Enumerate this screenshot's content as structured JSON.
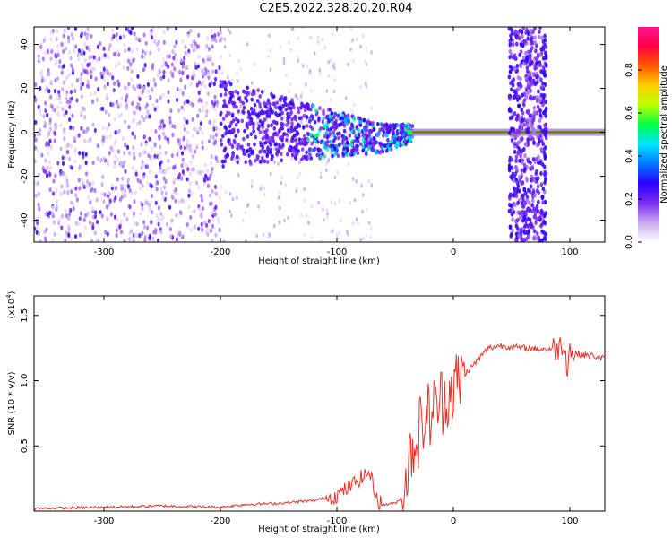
{
  "title": "C2E5.2022.328.20.20.R04",
  "chart_data": [
    {
      "type": "heatmap",
      "xlabel": "Height of straight line (km)",
      "ylabel": "Frequency (Hz)",
      "xlim": [
        -360,
        130
      ],
      "ylim": [
        -50,
        48
      ],
      "xticks": [
        -300,
        -200,
        -100,
        0,
        100
      ],
      "yticks": [
        -40,
        -20,
        0,
        20,
        40
      ],
      "colorbar": {
        "label": "Normalized spectral amplitude",
        "range": [
          0.0,
          1.0
        ],
        "ticks": [
          "0.0",
          "0.2",
          "0.4",
          "0.6",
          "0.8"
        ],
        "colors": [
          "#ffffff",
          "#c9a8f0",
          "#7a2cf0",
          "#2b00ff",
          "#0077ff",
          "#00e5ff",
          "#00ff44",
          "#b8ff00",
          "#ffd000",
          "#ff5a00",
          "#ff0044",
          "#ff1493"
        ]
      },
      "features": [
        {
          "segment": "noisy broadband",
          "x_range": [
            -360,
            -200
          ],
          "freq_range": [
            -50,
            48
          ]
        },
        {
          "segment": "converging band",
          "x_range": [
            -200,
            -40
          ],
          "freq_range": [
            -12,
            18
          ]
        },
        {
          "segment": "narrow carrier line",
          "x_range": [
            -40,
            130
          ],
          "freq_center": 0,
          "peak_amplitude": 1.0
        },
        {
          "segment": "broadband burst",
          "x_range": [
            48,
            80
          ],
          "freq_range": [
            -50,
            48
          ]
        }
      ]
    },
    {
      "type": "line",
      "xlabel": "Height of straight line (km)",
      "ylabel": "SNR (10 * v/v)",
      "multiplier": "(x10",
      "multiplier_exp": "4",
      "multiplier_close": ")",
      "xlim": [
        -360,
        130
      ],
      "ylim": [
        0,
        1.65
      ],
      "xticks": [
        -300,
        -200,
        -100,
        0,
        100
      ],
      "yticks": [
        0.5,
        1.0,
        1.5
      ],
      "ytick_labels": [
        "0.5",
        "1.0",
        "1.5"
      ],
      "line_color": "#e8302a",
      "series": [
        {
          "x": [
            -360,
            -300,
            -250,
            -200,
            -180,
            -150,
            -120,
            -110,
            -100,
            -90,
            -80,
            -72,
            -65,
            -60,
            -50,
            -45,
            -40,
            -35,
            -30,
            -25,
            -20,
            -15,
            -10,
            -5,
            0,
            5,
            10,
            20,
            30,
            40,
            60,
            80,
            90,
            95,
            98,
            100,
            102,
            105,
            110,
            120,
            130
          ],
          "y": [
            0.02,
            0.03,
            0.04,
            0.03,
            0.05,
            0.06,
            0.08,
            0.1,
            0.12,
            0.18,
            0.25,
            0.3,
            0.08,
            0.05,
            0.06,
            0.1,
            0.3,
            0.5,
            0.6,
            0.7,
            0.75,
            0.8,
            0.85,
            0.9,
            0.95,
            1.0,
            1.05,
            1.15,
            1.25,
            1.27,
            1.25,
            1.24,
            1.25,
            1.3,
            1.1,
            1.25,
            1.2,
            1.21,
            1.2,
            1.19,
            1.17
          ]
        }
      ]
    }
  ]
}
